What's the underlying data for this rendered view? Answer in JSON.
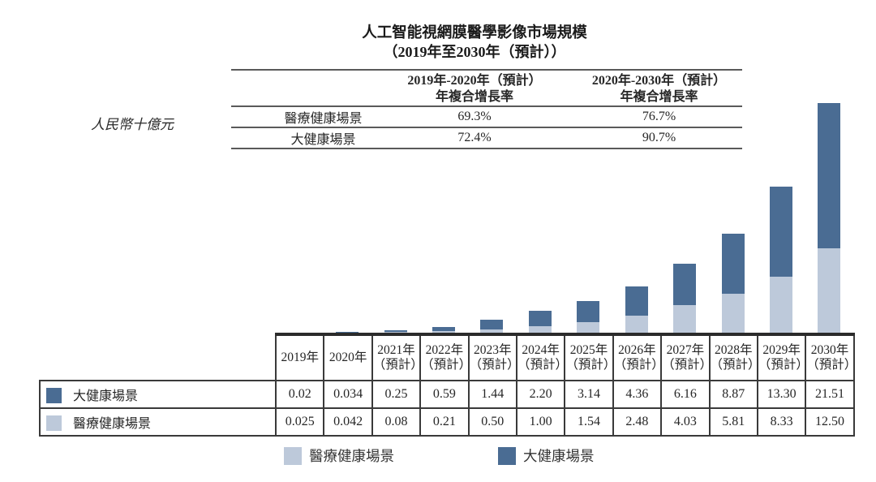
{
  "title": {
    "line1": "人工智能視網膜醫學影像市場規模",
    "line2": "（2019年至2030年（預計））"
  },
  "unit_label": "人民幣十億元",
  "colors": {
    "dark_blue": "#4a6c93",
    "light_blue": "#bdc9da"
  },
  "cagr_table": {
    "col1_header": [
      "2019年-2020年（預計）",
      "年複合增長率"
    ],
    "col2_header": [
      "2020年-2030年（預計）",
      "年複合增長率"
    ],
    "rows": [
      {
        "label": "醫療健康場景",
        "cagr1": "69.3%",
        "cagr2": "76.7%"
      },
      {
        "label": "大健康場景",
        "cagr1": "72.4%",
        "cagr2": "90.7%"
      }
    ]
  },
  "chart_data": {
    "type": "bar",
    "stacked": true,
    "title": "人工智能視網膜醫學影像市場規模（2019年至2030年（預計））",
    "ylabel": "人民幣十億元",
    "ylim": [
      0,
      35
    ],
    "grid": false,
    "legend_position": "bottom",
    "categories": [
      "2019年",
      "2020年",
      "2021年（預計）",
      "2022年（預計）",
      "2023年（預計）",
      "2024年（預計）",
      "2025年（預計）",
      "2026年（預計）",
      "2027年（預計）",
      "2028年（預計）",
      "2029年（預計）",
      "2030年（預計）"
    ],
    "series": [
      {
        "name": "醫療健康場景",
        "color": "#bdc9da",
        "values": [
          0.025,
          0.042,
          0.08,
          0.21,
          0.5,
          1.0,
          1.54,
          2.48,
          4.03,
          5.81,
          8.33,
          12.5
        ]
      },
      {
        "name": "大健康場景",
        "color": "#4a6c93",
        "values": [
          0.02,
          0.034,
          0.25,
          0.59,
          1.44,
          2.2,
          3.14,
          4.36,
          6.16,
          8.87,
          13.3,
          21.51
        ]
      }
    ],
    "cagr_annotations": [
      {
        "series": "醫療健康場景",
        "cagr_2019_2020": "69.3%",
        "cagr_2020_2030": "76.7%"
      },
      {
        "series": "大健康場景",
        "cagr_2019_2020": "72.4%",
        "cagr_2020_2030": "90.7%"
      }
    ]
  },
  "data_table": {
    "years": [
      {
        "year": "2019年",
        "note": ""
      },
      {
        "year": "2020年",
        "note": ""
      },
      {
        "year": "2021年",
        "note": "（預計）"
      },
      {
        "year": "2022年",
        "note": "（預計）"
      },
      {
        "year": "2023年",
        "note": "（預計）"
      },
      {
        "year": "2024年",
        "note": "（預計）"
      },
      {
        "year": "2025年",
        "note": "（預計）"
      },
      {
        "year": "2026年",
        "note": "（預計）"
      },
      {
        "year": "2027年",
        "note": "（預計）"
      },
      {
        "year": "2028年",
        "note": "（預計）"
      },
      {
        "year": "2029年",
        "note": "（預計）"
      },
      {
        "year": "2030年",
        "note": "（預計）"
      }
    ],
    "rows": [
      {
        "label": "大健康場景",
        "color_key": "dark_blue",
        "values": [
          "0.02",
          "0.034",
          "0.25",
          "0.59",
          "1.44",
          "2.20",
          "3.14",
          "4.36",
          "6.16",
          "8.87",
          "13.30",
          "21.51"
        ]
      },
      {
        "label": "醫療健康場景",
        "color_key": "light_blue",
        "values": [
          "0.025",
          "0.042",
          "0.08",
          "0.21",
          "0.50",
          "1.00",
          "1.54",
          "2.48",
          "4.03",
          "5.81",
          "8.33",
          "12.50"
        ]
      }
    ]
  },
  "legend": [
    {
      "label": "醫療健康場景",
      "color_key": "light_blue"
    },
    {
      "label": "大健康場景",
      "color_key": "dark_blue"
    }
  ]
}
